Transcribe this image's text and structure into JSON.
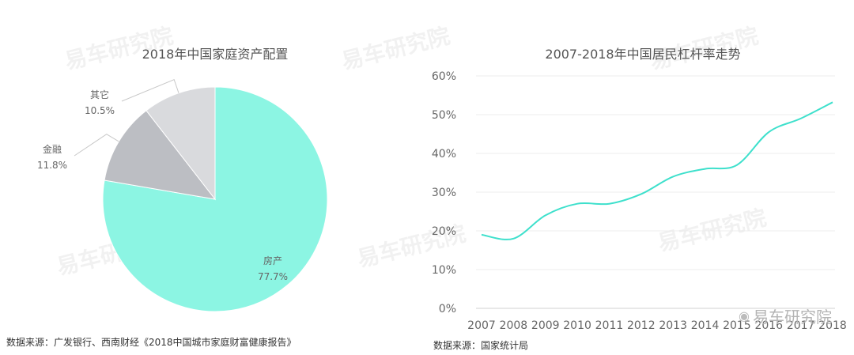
{
  "chart_data": [
    {
      "type": "pie",
      "title": "2018年中国家庭资产配置",
      "slices": [
        {
          "label": "房产",
          "value": 77.7,
          "display": "77.7%",
          "color": "#8cf5e3"
        },
        {
          "label": "金融",
          "value": 11.8,
          "display": "11.8%",
          "color": "#bcbec3"
        },
        {
          "label": "其它",
          "value": 10.5,
          "display": "10.5%",
          "color": "#d9dadd"
        }
      ],
      "source": "数据来源：广发银行、西南财经《2018中国城市家庭财富健康报告》"
    },
    {
      "type": "line",
      "title": "2007-2018年中国居民杠杆率走势",
      "x": [
        "2007",
        "2008",
        "2009",
        "2010",
        "2011",
        "2012",
        "2013",
        "2014",
        "2015",
        "2016",
        "2017",
        "2018"
      ],
      "series": [
        {
          "values": [
            19,
            18,
            24,
            27,
            27,
            29.5,
            34,
            36,
            37,
            45.5,
            49,
            53.2
          ],
          "color": "#3ee0cc"
        }
      ],
      "yticks": [
        "0%",
        "10%",
        "20%",
        "30%",
        "40%",
        "50%",
        "60%"
      ],
      "ylim": [
        0,
        60
      ],
      "grid": true,
      "source": "数据来源：国家统计局"
    }
  ],
  "watermark": {
    "brand": "易车研究院"
  }
}
